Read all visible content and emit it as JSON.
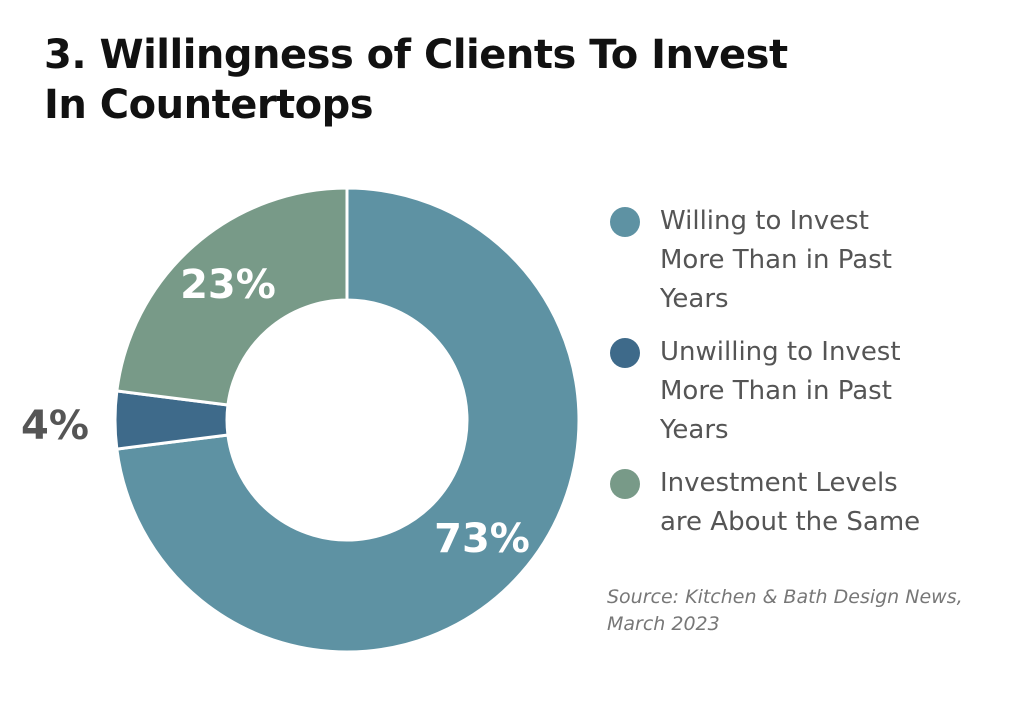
{
  "title_lines": [
    "3. Willingness of Clients To Invest",
    "In Countertops"
  ],
  "chart_data": {
    "type": "pie",
    "style": "donut",
    "title": "3. Willingness of Clients To Invest In Countertops",
    "series": [
      {
        "name": "Willing to Invest More Than in Past Years",
        "value": 73,
        "label": "73%",
        "color": "#5e92a3"
      },
      {
        "name": "Unwilling to Invest More Than in Past Years",
        "value": 4,
        "label": "4%",
        "color": "#3e6a8a"
      },
      {
        "name": "Investment Levels are About the Same",
        "value": 23,
        "label": "23%",
        "color": "#789a88"
      }
    ],
    "start_angle_deg": 0,
    "direction": "clockwise",
    "legend_position": "right"
  },
  "legend": [
    {
      "lines": [
        "Willing to Invest",
        "More Than in Past",
        "Years"
      ],
      "color": "#5e92a3"
    },
    {
      "lines": [
        "Unwilling to Invest",
        "More Than in Past",
        "Years"
      ],
      "color": "#3e6a8a"
    },
    {
      "lines": [
        "Investment Levels",
        "are About the Same"
      ],
      "color": "#789a88"
    }
  ],
  "source_lines": [
    "Source: Kitchen & Bath Design News,",
    "March 2023"
  ]
}
